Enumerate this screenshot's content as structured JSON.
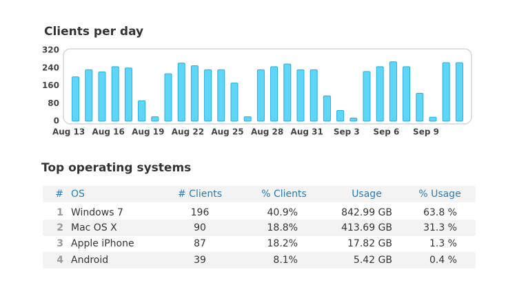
{
  "chart_data": {
    "type": "bar",
    "title": "Clients per day",
    "categories": [
      "Aug 13",
      null,
      null,
      "Aug 16",
      null,
      null,
      "Aug 19",
      null,
      null,
      "Aug 22",
      null,
      null,
      "Aug 25",
      null,
      null,
      "Aug 28",
      null,
      null,
      "Aug 31",
      null,
      null,
      "Sep 3",
      null,
      null,
      "Sep 6",
      null,
      null,
      "Sep 9",
      null,
      null
    ],
    "values": [
      200,
      232,
      222,
      246,
      240,
      92,
      20,
      214,
      262,
      250,
      232,
      232,
      172,
      20,
      232,
      246,
      258,
      232,
      232,
      114,
      48,
      14,
      224,
      246,
      268,
      246,
      126,
      18,
      264,
      264
    ],
    "color": "#5fd6f7",
    "ylim": [
      0,
      320
    ],
    "yticks": [
      0,
      80,
      160,
      240,
      320
    ],
    "grid": false
  },
  "table": {
    "title": "Top operating systems",
    "columns": [
      "#",
      "OS",
      "# Clients",
      "% Clients",
      "Usage",
      "% Usage"
    ],
    "rows": [
      [
        "1",
        "Windows 7",
        "196",
        "40.9%",
        "842.99 GB",
        "63.8 %"
      ],
      [
        "2",
        "Mac OS X",
        "90",
        "18.8%",
        "413.69 GB",
        "31.3 %"
      ],
      [
        "3",
        "Apple iPhone",
        "87",
        "18.2%",
        "17.82 GB",
        "1.3 %"
      ],
      [
        "4",
        "Android",
        "39",
        "8.1%",
        "5.42 GB",
        "0.4 %"
      ]
    ]
  }
}
